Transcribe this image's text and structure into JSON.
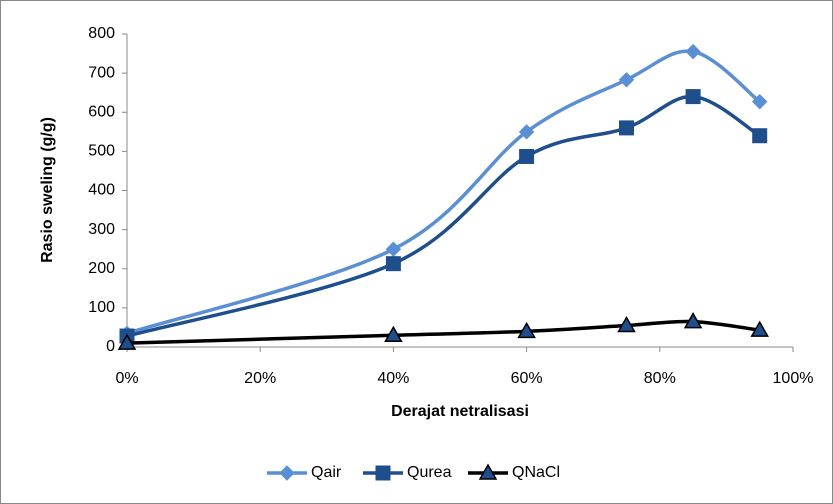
{
  "chart_data": {
    "type": "line",
    "smooth": true,
    "x_label": "Derajat netralisasi",
    "y_label": "Rasio sweling (g/g)",
    "x": [
      0,
      40,
      60,
      75,
      85,
      95
    ],
    "xlim": [
      0,
      100
    ],
    "xticks": [
      {
        "value": 0,
        "label": "0%"
      },
      {
        "value": 20,
        "label": "20%"
      },
      {
        "value": 40,
        "label": "40%"
      },
      {
        "value": 60,
        "label": "60%"
      },
      {
        "value": 80,
        "label": "80%"
      },
      {
        "value": 100,
        "label": "100%"
      }
    ],
    "ylim": [
      0,
      800
    ],
    "yticks": [
      0,
      100,
      200,
      300,
      400,
      500,
      600,
      700,
      800
    ],
    "grid": false,
    "legend": "bottom",
    "series": [
      {
        "name": "Qair",
        "color": "#5b8fd3",
        "marker": "diamond",
        "values": [
          35,
          250,
          550,
          683,
          755,
          627
        ]
      },
      {
        "name": "Qurea",
        "color": "#1f4e8c",
        "marker": "square",
        "values": [
          28,
          213,
          487,
          560,
          640,
          540
        ]
      },
      {
        "name": "QNaCl",
        "color": "#000000",
        "marker": "triangle",
        "values": [
          10,
          30,
          40,
          55,
          65,
          43
        ]
      }
    ]
  }
}
